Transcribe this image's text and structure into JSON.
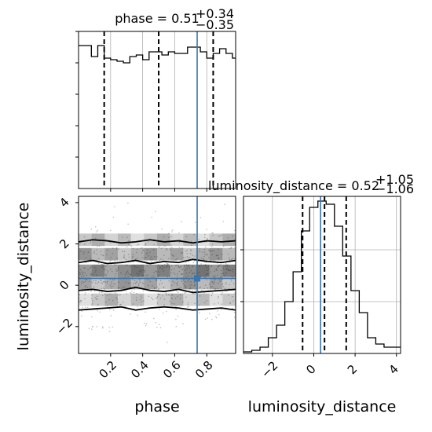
{
  "colors": {
    "truth": "#3b75af",
    "line": "#000000",
    "background": "#ffffff"
  },
  "titles": {
    "phase": {
      "text": "phase = 0.51",
      "sup": "+0.34",
      "sub": "−0.35"
    },
    "luminosity_distance": {
      "text": "luminosity_distance = 0.52",
      "sup": "+1.05",
      "sub": "−1.06"
    }
  },
  "labels": {
    "phase": "phase",
    "luminosity_distance": "luminosity_distance"
  },
  "chart_data": [
    {
      "type": "bar",
      "panel": "phase marginal histogram",
      "xlim": [
        0.0,
        0.98
      ],
      "ylim": [
        0,
        1.0
      ],
      "bin_edges": [
        0.0,
        0.04,
        0.08,
        0.12,
        0.16,
        0.2,
        0.24,
        0.28,
        0.32,
        0.36,
        0.4,
        0.44,
        0.48,
        0.52,
        0.56,
        0.6,
        0.64,
        0.68,
        0.72,
        0.76,
        0.8,
        0.84,
        0.88,
        0.92,
        0.96,
        0.98
      ],
      "values": [
        0.91,
        0.91,
        0.84,
        0.91,
        0.83,
        0.82,
        0.81,
        0.8,
        0.84,
        0.85,
        0.82,
        0.87,
        0.87,
        0.85,
        0.87,
        0.86,
        0.86,
        0.9,
        0.9,
        0.87,
        0.83,
        0.86,
        0.89,
        0.86,
        0.83
      ],
      "quantiles": [
        0.16,
        0.5,
        0.84
      ],
      "truth": 0.74,
      "xticks": [
        0.2,
        0.4,
        0.6,
        0.8
      ]
    },
    {
      "type": "bar",
      "panel": "luminosity_distance marginal histogram",
      "xlim": [
        -3.4,
        4.2
      ],
      "ylim": [
        0,
        1.0
      ],
      "bin_edges": [
        -3.4,
        -3.0,
        -2.6,
        -2.2,
        -1.8,
        -1.4,
        -1.0,
        -0.6,
        -0.2,
        0.2,
        0.6,
        1.0,
        1.4,
        1.8,
        2.2,
        2.6,
        3.0,
        3.4,
        3.8,
        4.2
      ],
      "values": [
        0.01,
        0.02,
        0.04,
        0.1,
        0.18,
        0.33,
        0.52,
        0.78,
        0.93,
        0.97,
        0.95,
        0.81,
        0.62,
        0.4,
        0.26,
        0.1,
        0.06,
        0.04,
        0.04
      ],
      "quantiles": [
        -0.54,
        0.52,
        1.57
      ],
      "truth": 0.33,
      "truth2": 0.52,
      "xticks": [
        -2,
        0,
        2,
        4
      ],
      "xtick_labels": [
        "−2",
        "0",
        "2",
        "4"
      ]
    },
    {
      "type": "heatmap",
      "panel": "2D density phase vs luminosity_distance",
      "xlim": [
        0.0,
        0.98
      ],
      "ylim": [
        -3.3,
        4.3
      ],
      "x_truth": 0.74,
      "y_truth": 0.33,
      "xticks": [
        0.2,
        0.4,
        0.6,
        0.8
      ],
      "yticks": [
        -2,
        0,
        2,
        4
      ],
      "ytick_labels": [
        "−2",
        "0",
        "2",
        "4"
      ],
      "contour_levels_y": [
        [
          -1.2,
          -1.15,
          -1.1,
          -1.05,
          -1.2,
          -1.1,
          -1.05,
          -1.1,
          -1.2,
          -1.15,
          -1.1,
          -1.2
        ],
        [
          -0.25,
          -0.2,
          -0.3,
          -0.25,
          -0.1,
          -0.25,
          -0.3,
          -0.2,
          -0.35,
          -0.3,
          -0.25,
          -0.2
        ],
        [
          1.1,
          1.2,
          1.05,
          1.1,
          1.2,
          1.05,
          1.15,
          1.1,
          1.25,
          1.15,
          1.1,
          1.2
        ],
        [
          2.1,
          2.2,
          2.15,
          2.05,
          2.1,
          2.2,
          2.1,
          2.15,
          2.05,
          2.15,
          2.1,
          2.15
        ]
      ]
    }
  ]
}
